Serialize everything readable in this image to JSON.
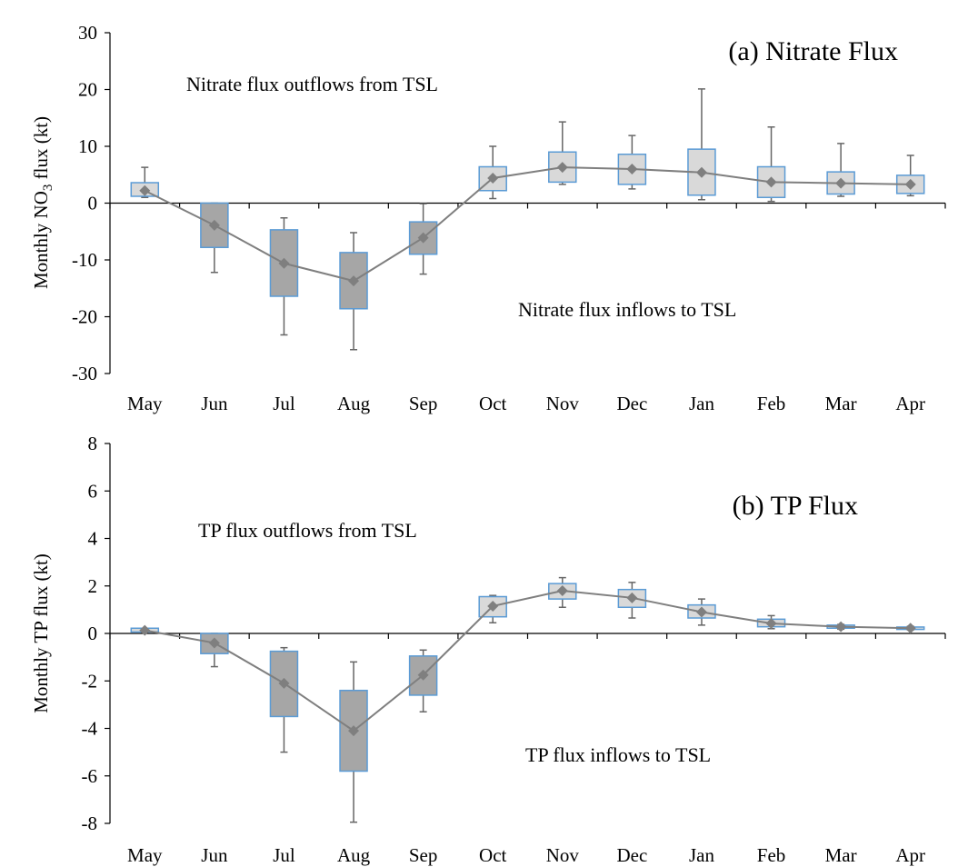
{
  "chart_data": [
    {
      "type": "box",
      "title": "(a) Nitrate Flux",
      "ylabel_pre": "Monthly NO",
      "ylabel_sub": "3",
      "ylabel_post": " flux (kt)",
      "ylim": [
        -30,
        30
      ],
      "yticks": [
        -30,
        -20,
        -10,
        0,
        10,
        20,
        30
      ],
      "categories": [
        "May",
        "Jun",
        "Jul",
        "Aug",
        "Sep",
        "Oct",
        "Nov",
        "Dec",
        "Jan",
        "Feb",
        "Mar",
        "Apr"
      ],
      "annotations": {
        "outflow": "Nitrate flux outflows from TSL",
        "inflow": "Nitrate flux inflows to TSL"
      },
      "box_colors": {
        "negative": "#a6a6a6",
        "positive": "#d9d9d9",
        "outline": "#5b9bd5"
      },
      "mean_color": "#7f7f7f",
      "boxes": [
        {
          "month": "May",
          "min": 1,
          "q1": 1.2,
          "q3": 3.6,
          "max": 6.3,
          "mean": 2.2
        },
        {
          "month": "Jun",
          "min": -12.2,
          "q1": -7.8,
          "q3": 0,
          "max": 0,
          "mean": -3.9
        },
        {
          "month": "Jul",
          "min": -23.2,
          "q1": -16.4,
          "q3": -4.7,
          "max": -2.6,
          "mean": -10.6
        },
        {
          "month": "Aug",
          "min": -25.8,
          "q1": -18.6,
          "q3": -8.7,
          "max": -5.2,
          "mean": -13.7
        },
        {
          "month": "Sep",
          "min": -12.5,
          "q1": -9,
          "q3": -3.3,
          "max": -0.1,
          "mean": -6.1
        },
        {
          "month": "Oct",
          "min": 0.8,
          "q1": 2.2,
          "q3": 6.4,
          "max": 10,
          "mean": 4.4
        },
        {
          "month": "Nov",
          "min": 3.3,
          "q1": 3.7,
          "q3": 9,
          "max": 14.3,
          "mean": 6.3
        },
        {
          "month": "Dec",
          "min": 2.5,
          "q1": 3.3,
          "q3": 8.6,
          "max": 11.9,
          "mean": 6
        },
        {
          "month": "Jan",
          "min": 0.6,
          "q1": 1.4,
          "q3": 9.5,
          "max": 20.1,
          "mean": 5.4
        },
        {
          "month": "Feb",
          "min": 0.3,
          "q1": 1,
          "q3": 6.4,
          "max": 13.4,
          "mean": 3.7
        },
        {
          "month": "Mar",
          "min": 1.2,
          "q1": 1.6,
          "q3": 5.5,
          "max": 10.5,
          "mean": 3.5
        },
        {
          "month": "Apr",
          "min": 1.3,
          "q1": 1.7,
          "q3": 4.9,
          "max": 8.4,
          "mean": 3.3
        }
      ]
    },
    {
      "type": "box",
      "title": "(b) TP Flux",
      "ylabel_pre": "Monthly TP flux (kt)",
      "ylabel_sub": "",
      "ylabel_post": "",
      "ylim": [
        -8,
        8
      ],
      "yticks": [
        -8,
        -6,
        -4,
        -2,
        0,
        2,
        4,
        6,
        8
      ],
      "categories": [
        "May",
        "Jun",
        "Jul",
        "Aug",
        "Sep",
        "Oct",
        "Nov",
        "Dec",
        "Jan",
        "Feb",
        "Mar",
        "Apr"
      ],
      "annotations": {
        "outflow": "TP flux outflows from TSL",
        "inflow": "TP flux inflows to TSL"
      },
      "box_colors": {
        "negative": "#a6a6a6",
        "positive": "#d9d9d9",
        "outline": "#5b9bd5"
      },
      "mean_color": "#7f7f7f",
      "boxes": [
        {
          "month": "May",
          "min": 0.05,
          "q1": 0.06,
          "q3": 0.22,
          "max": 0.22,
          "mean": 0.13
        },
        {
          "month": "Jun",
          "min": -1.4,
          "q1": -0.85,
          "q3": 0,
          "max": 0,
          "mean": -0.4
        },
        {
          "month": "Jul",
          "min": -5,
          "q1": -3.5,
          "q3": -0.75,
          "max": -0.6,
          "mean": -2.1
        },
        {
          "month": "Aug",
          "min": -7.95,
          "q1": -5.8,
          "q3": -2.4,
          "max": -1.2,
          "mean": -4.1
        },
        {
          "month": "Sep",
          "min": -3.3,
          "q1": -2.6,
          "q3": -0.95,
          "max": -0.7,
          "mean": -1.75
        },
        {
          "month": "Oct",
          "min": 0.45,
          "q1": 0.7,
          "q3": 1.55,
          "max": 1.6,
          "mean": 1.15
        },
        {
          "month": "Nov",
          "min": 1.1,
          "q1": 1.45,
          "q3": 2.1,
          "max": 2.35,
          "mean": 1.8
        },
        {
          "month": "Dec",
          "min": 0.65,
          "q1": 1.1,
          "q3": 1.85,
          "max": 2.15,
          "mean": 1.5
        },
        {
          "month": "Jan",
          "min": 0.35,
          "q1": 0.65,
          "q3": 1.2,
          "max": 1.45,
          "mean": 0.9
        },
        {
          "month": "Feb",
          "min": 0.2,
          "q1": 0.28,
          "q3": 0.6,
          "max": 0.75,
          "mean": 0.42
        },
        {
          "month": "Mar",
          "min": 0.18,
          "q1": 0.22,
          "q3": 0.35,
          "max": 0.38,
          "mean": 0.28
        },
        {
          "month": "Apr",
          "min": 0.15,
          "q1": 0.17,
          "q3": 0.27,
          "max": 0.3,
          "mean": 0.22
        }
      ]
    }
  ]
}
